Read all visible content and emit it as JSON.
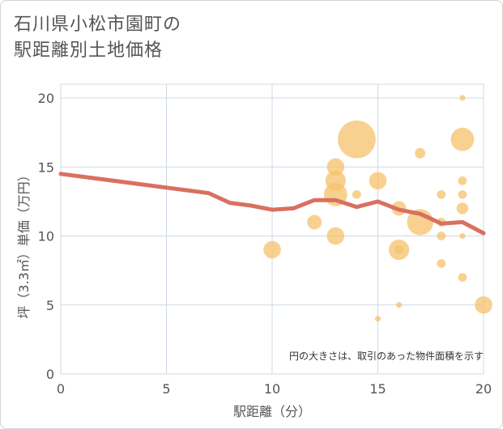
{
  "title_line1": "石川県小松市園町の",
  "title_line2": "駅距離別土地価格",
  "chart_data": {
    "type": "scatter",
    "title": "石川県小松市園町の駅距離別土地価格",
    "xlabel": "駅距離（分）",
    "ylabel": "坪（3.3㎡）単価（万円）",
    "xlim": [
      0,
      20
    ],
    "ylim": [
      0,
      20
    ],
    "xticks": [
      0,
      5,
      10,
      15,
      20
    ],
    "yticks": [
      0,
      5,
      10,
      15,
      20
    ],
    "grid": true,
    "note": "円の大きさは、取引のあった物件面積を示す",
    "bubble_color": "#f5c26b",
    "line_color": "#d9705f",
    "points": [
      {
        "x": 10,
        "y": 9,
        "size": 3
      },
      {
        "x": 12,
        "y": 11,
        "size": 2.5
      },
      {
        "x": 13,
        "y": 15,
        "size": 3
      },
      {
        "x": 13,
        "y": 14,
        "size": 3.5
      },
      {
        "x": 13,
        "y": 13,
        "size": 4
      },
      {
        "x": 13,
        "y": 10,
        "size": 3
      },
      {
        "x": 14,
        "y": 17,
        "size": 6.5
      },
      {
        "x": 14,
        "y": 13,
        "size": 1.5
      },
      {
        "x": 15,
        "y": 14,
        "size": 3
      },
      {
        "x": 15,
        "y": 4,
        "size": 1
      },
      {
        "x": 16,
        "y": 12,
        "size": 2.5
      },
      {
        "x": 16,
        "y": 9,
        "size": 3.5
      },
      {
        "x": 16,
        "y": 9,
        "size": 1.5
      },
      {
        "x": 16,
        "y": 5,
        "size": 1
      },
      {
        "x": 17,
        "y": 16,
        "size": 1.8
      },
      {
        "x": 17,
        "y": 11,
        "size": 4.5
      },
      {
        "x": 18,
        "y": 13,
        "size": 1.5
      },
      {
        "x": 18,
        "y": 11,
        "size": 1.5
      },
      {
        "x": 18,
        "y": 10,
        "size": 1.5
      },
      {
        "x": 18,
        "y": 8,
        "size": 1.5
      },
      {
        "x": 19,
        "y": 20,
        "size": 1
      },
      {
        "x": 19,
        "y": 17,
        "size": 4
      },
      {
        "x": 19,
        "y": 14,
        "size": 1.5
      },
      {
        "x": 19,
        "y": 13,
        "size": 1.5
      },
      {
        "x": 19,
        "y": 12,
        "size": 2
      },
      {
        "x": 19,
        "y": 10,
        "size": 1
      },
      {
        "x": 19,
        "y": 7,
        "size": 1.5
      },
      {
        "x": 20,
        "y": 5,
        "size": 3
      }
    ],
    "trend_line": [
      {
        "x": 0,
        "y": 14.5
      },
      {
        "x": 7,
        "y": 13.1
      },
      {
        "x": 8,
        "y": 12.4
      },
      {
        "x": 9,
        "y": 12.2
      },
      {
        "x": 10,
        "y": 11.9
      },
      {
        "x": 11,
        "y": 12.0
      },
      {
        "x": 12,
        "y": 12.6
      },
      {
        "x": 13,
        "y": 12.6
      },
      {
        "x": 14,
        "y": 12.1
      },
      {
        "x": 15,
        "y": 12.5
      },
      {
        "x": 16,
        "y": 11.9
      },
      {
        "x": 17,
        "y": 11.6
      },
      {
        "x": 18,
        "y": 10.9
      },
      {
        "x": 19,
        "y": 11.0
      },
      {
        "x": 20,
        "y": 10.2
      }
    ]
  }
}
